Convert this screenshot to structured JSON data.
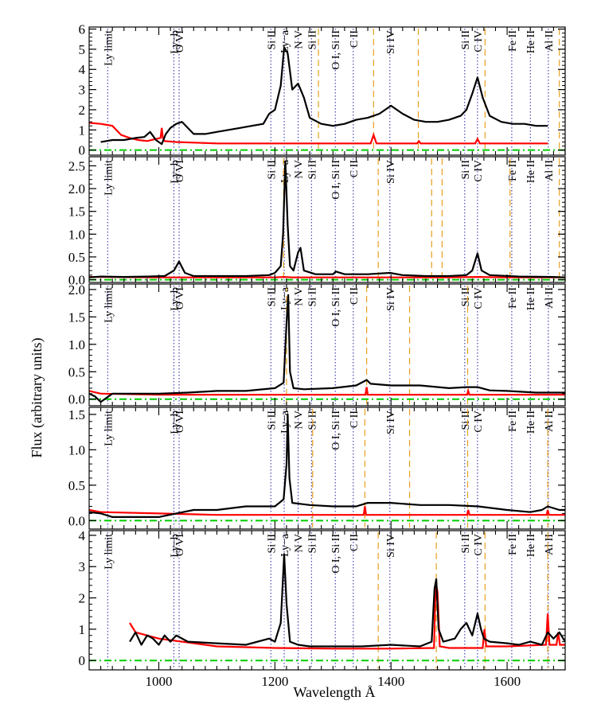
{
  "chart_data": {
    "type": "line",
    "xlabel": "Wavelength Å",
    "ylabel": "Flux (arbitrary units)",
    "xlim": [
      880,
      1700
    ],
    "x_ticks": [
      1000,
      1200,
      1400,
      1600
    ],
    "colors": {
      "spectrum": "#000000",
      "error": "#ff0000",
      "zero_line": "#00cc00",
      "line_marker": "#3333aa",
      "absorber_marker": "#e8a020"
    },
    "line_labels": [
      {
        "text": "Ly limit",
        "x": 912
      },
      {
        "text": "Ly−b",
        "x": 1026
      },
      {
        "text": "O VI",
        "x": 1035
      },
      {
        "text": "Si II",
        "x": 1193
      },
      {
        "text": "Ly−a",
        "x": 1216
      },
      {
        "text": "N V",
        "x": 1240
      },
      {
        "text": "Si II",
        "x": 1263
      },
      {
        "text": "O I, Si II",
        "x": 1304
      },
      {
        "text": "C II",
        "x": 1335
      },
      {
        "text": "Si IV",
        "x": 1398
      },
      {
        "text": "Si II",
        "x": 1527
      },
      {
        "text": "C IV",
        "x": 1549
      },
      {
        "text": "Fe II",
        "x": 1608
      },
      {
        "text": "He II",
        "x": 1640
      },
      {
        "text": "Al II",
        "x": 1671
      }
    ],
    "panels": [
      {
        "ylim": [
          -0.25,
          6.1
        ],
        "y_ticks": [
          0,
          1,
          2,
          3,
          4,
          5,
          6
        ],
        "absorber_lines": [
          1275,
          1370,
          1447,
          1562,
          1690
        ],
        "spectrum": {
          "x": [
            900,
            920,
            940,
            960,
            975,
            985,
            995,
            1005,
            1012,
            1020,
            1030,
            1040,
            1060,
            1080,
            1100,
            1120,
            1140,
            1160,
            1180,
            1190,
            1200,
            1210,
            1216,
            1222,
            1230,
            1240,
            1250,
            1260,
            1280,
            1300,
            1320,
            1340,
            1360,
            1380,
            1400,
            1420,
            1440,
            1460,
            1480,
            1500,
            1520,
            1530,
            1540,
            1549,
            1558,
            1570,
            1590,
            1610,
            1630,
            1650,
            1670
          ],
          "y": [
            0.4,
            0.5,
            0.5,
            0.6,
            0.65,
            0.9,
            0.5,
            0.3,
            0.8,
            1.1,
            1.3,
            1.4,
            0.8,
            0.8,
            0.9,
            1.0,
            1.1,
            1.2,
            1.3,
            1.8,
            2.0,
            3.2,
            5.1,
            4.8,
            3.0,
            3.3,
            2.6,
            1.6,
            1.3,
            1.2,
            1.3,
            1.5,
            1.6,
            1.8,
            2.2,
            1.8,
            1.5,
            1.4,
            1.4,
            1.5,
            1.7,
            2.0,
            2.8,
            3.6,
            2.6,
            1.7,
            1.4,
            1.3,
            1.3,
            1.2,
            1.2
          ]
        },
        "error": {
          "x": [
            880,
            900,
            920,
            935,
            950,
            965,
            980,
            995,
            1003,
            1005,
            1007,
            1010,
            1030,
            1100,
            1200,
            1300,
            1365,
            1370,
            1375,
            1445,
            1448,
            1451,
            1545,
            1549,
            1553,
            1600,
            1670
          ],
          "y": [
            1.35,
            1.3,
            1.2,
            0.75,
            0.6,
            0.5,
            0.45,
            0.55,
            0.6,
            1.1,
            0.6,
            0.45,
            0.4,
            0.33,
            0.33,
            0.33,
            0.33,
            0.75,
            0.33,
            0.33,
            0.45,
            0.33,
            0.33,
            0.55,
            0.33,
            0.33,
            0.33
          ]
        }
      },
      {
        "ylim": [
          -0.06,
          2.7
        ],
        "y_ticks": [
          0.0,
          0.5,
          1.0,
          1.5,
          2.0,
          2.5
        ],
        "absorber_lines": [
          1215,
          1378,
          1470,
          1488,
          1605,
          1690
        ],
        "spectrum": {
          "x": [
            880,
            900,
            940,
            980,
            1010,
            1026,
            1035,
            1045,
            1060,
            1100,
            1150,
            1190,
            1200,
            1210,
            1214,
            1218,
            1222,
            1226,
            1232,
            1240,
            1244,
            1250,
            1270,
            1300,
            1305,
            1320,
            1360,
            1398,
            1420,
            1460,
            1500,
            1530,
            1540,
            1549,
            1556,
            1570,
            1620,
            1680,
            1700
          ],
          "y": [
            0.05,
            0.07,
            0.06,
            0.07,
            0.08,
            0.2,
            0.4,
            0.15,
            0.08,
            0.08,
            0.08,
            0.1,
            0.15,
            0.3,
            1.0,
            2.6,
            1.2,
            0.3,
            0.2,
            0.6,
            0.7,
            0.2,
            0.12,
            0.12,
            0.18,
            0.12,
            0.12,
            0.15,
            0.1,
            0.08,
            0.08,
            0.1,
            0.2,
            0.58,
            0.2,
            0.1,
            0.07,
            0.06,
            0.05
          ]
        },
        "error": {
          "x": [
            880,
            1000,
            1100,
            1200,
            1216,
            1230,
            1300,
            1400,
            1500,
            1549,
            1600,
            1700
          ],
          "y": [
            0.06,
            0.05,
            0.05,
            0.05,
            0.06,
            0.05,
            0.05,
            0.05,
            0.05,
            0.06,
            0.05,
            0.05
          ]
        }
      },
      {
        "ylim": [
          -0.12,
          2.1
        ],
        "y_ticks": [
          0.0,
          0.5,
          1.0,
          1.5,
          2.0
        ],
        "absorber_lines": [
          1220,
          1358,
          1432,
          1532
        ],
        "spectrum": {
          "x": [
            880,
            890,
            900,
            920,
            950,
            1000,
            1050,
            1100,
            1150,
            1200,
            1215,
            1220,
            1223,
            1226,
            1232,
            1250,
            1300,
            1340,
            1358,
            1365,
            1400,
            1450,
            1500,
            1530,
            1549,
            1570,
            1600,
            1650,
            1700
          ],
          "y": [
            0.1,
            0.05,
            -0.05,
            0.1,
            0.1,
            0.1,
            0.12,
            0.15,
            0.15,
            0.2,
            0.3,
            1.4,
            1.9,
            0.5,
            0.2,
            0.18,
            0.2,
            0.25,
            0.35,
            0.28,
            0.25,
            0.25,
            0.2,
            0.22,
            0.22,
            0.16,
            0.15,
            0.12,
            0.12
          ]
        },
        "error": {
          "x": [
            880,
            900,
            1000,
            1100,
            1200,
            1300,
            1356,
            1358,
            1360,
            1400,
            1500,
            1531,
            1533,
            1535,
            1600,
            1700
          ],
          "y": [
            0.15,
            0.1,
            0.08,
            0.08,
            0.08,
            0.08,
            0.08,
            0.22,
            0.08,
            0.08,
            0.08,
            0.08,
            0.15,
            0.08,
            0.08,
            0.08
          ]
        }
      },
      {
        "ylim": [
          -0.12,
          1.6
        ],
        "y_ticks": [
          0.0,
          0.5,
          1.0,
          1.5
        ],
        "absorber_lines": [
          1265,
          1355,
          1432,
          1532,
          1670
        ],
        "spectrum": {
          "x": [
            880,
            900,
            920,
            950,
            1000,
            1030,
            1060,
            1100,
            1150,
            1200,
            1215,
            1220,
            1222,
            1225,
            1230,
            1260,
            1300,
            1340,
            1360,
            1400,
            1450,
            1500,
            1550,
            1600,
            1640,
            1660,
            1670,
            1690,
            1700
          ],
          "y": [
            0.12,
            0.1,
            0.05,
            0.05,
            0.05,
            0.1,
            0.15,
            0.15,
            0.2,
            0.2,
            0.3,
            0.8,
            1.5,
            0.6,
            0.25,
            0.22,
            0.2,
            0.2,
            0.25,
            0.25,
            0.22,
            0.22,
            0.2,
            0.15,
            0.12,
            0.15,
            0.2,
            0.15,
            0.15
          ]
        },
        "error": {
          "x": [
            880,
            900,
            1000,
            1100,
            1200,
            1300,
            1353,
            1355,
            1357,
            1400,
            1500,
            1531,
            1533,
            1535,
            1600,
            1668,
            1670,
            1672,
            1700
          ],
          "y": [
            0.15,
            0.12,
            0.1,
            0.08,
            0.08,
            0.08,
            0.08,
            0.2,
            0.08,
            0.08,
            0.08,
            0.08,
            0.15,
            0.08,
            0.08,
            0.08,
            0.15,
            0.08,
            0.08
          ]
        }
      },
      {
        "ylim": [
          -0.3,
          4.15
        ],
        "y_ticks": [
          0,
          1,
          2,
          3,
          4
        ],
        "absorber_lines": [
          1378,
          1478,
          1562,
          1670
        ],
        "spectrum": {
          "x": [
            950,
            960,
            970,
            980,
            990,
            1000,
            1010,
            1020,
            1030,
            1050,
            1100,
            1150,
            1190,
            1200,
            1210,
            1216,
            1220,
            1226,
            1240,
            1260,
            1300,
            1350,
            1400,
            1450,
            1470,
            1475,
            1478,
            1482,
            1490,
            1510,
            1520,
            1530,
            1540,
            1549,
            1555,
            1560,
            1570,
            1600,
            1620,
            1640,
            1660,
            1670,
            1680,
            1690,
            1700
          ],
          "y": [
            0.6,
            0.9,
            0.5,
            0.8,
            0.7,
            0.5,
            0.8,
            0.6,
            0.8,
            0.6,
            0.55,
            0.5,
            0.7,
            0.6,
            1.2,
            3.4,
            1.8,
            0.6,
            0.5,
            0.45,
            0.45,
            0.45,
            0.5,
            0.45,
            0.6,
            2.3,
            2.6,
            1.0,
            0.6,
            0.7,
            1.0,
            1.2,
            0.8,
            1.5,
            1.0,
            0.7,
            0.6,
            0.55,
            0.5,
            0.6,
            0.5,
            0.9,
            0.7,
            0.9,
            0.6
          ]
        },
        "error": {
          "x": [
            950,
            960,
            1000,
            1100,
            1200,
            1300,
            1400,
            1474,
            1477,
            1480,
            1484,
            1500,
            1558,
            1561,
            1564,
            1600,
            1667,
            1670,
            1673,
            1685,
            1688,
            1691,
            1700
          ],
          "y": [
            1.2,
            0.9,
            0.7,
            0.45,
            0.4,
            0.38,
            0.38,
            0.4,
            2.5,
            2.2,
            0.45,
            0.4,
            0.4,
            1.0,
            0.45,
            0.45,
            0.5,
            1.5,
            0.5,
            0.5,
            0.9,
            0.5,
            0.5
          ]
        }
      }
    ]
  }
}
